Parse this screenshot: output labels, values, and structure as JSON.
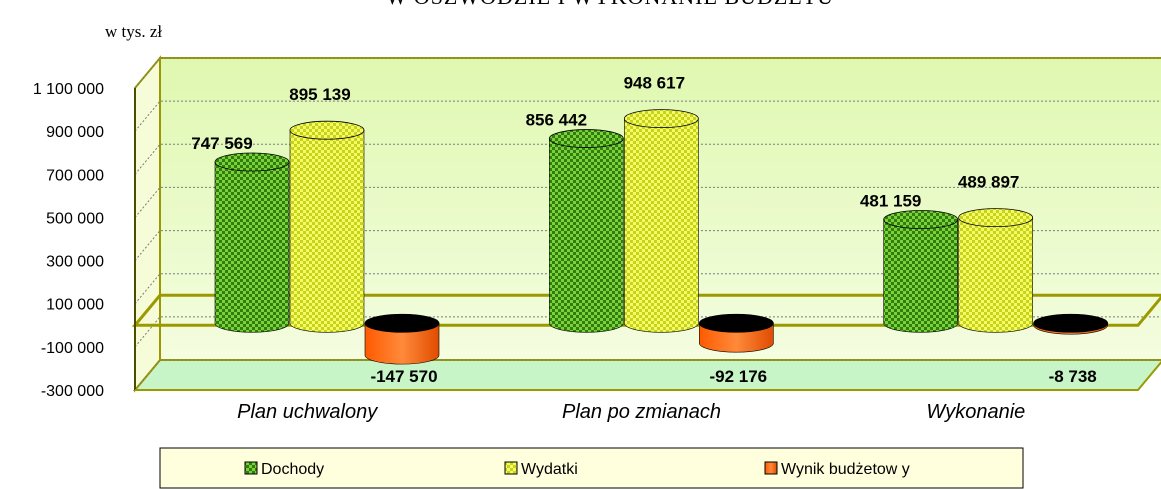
{
  "chart_data": {
    "type": "bar",
    "title": "W OSZWODZIE I WYKONANIE BUDŻETU",
    "unit_label": "w tys. zł",
    "categories": [
      "Plan uchwalony",
      "Plan po zmianach",
      "Wykonanie"
    ],
    "series": [
      {
        "name": "Dochody",
        "values": [
          747569,
          856442,
          481159
        ],
        "color": "#4a9a1c"
      },
      {
        "name": "Wydatki",
        "values": [
          895139,
          948617,
          489897
        ],
        "color": "#e8f53a"
      },
      {
        "name": "Wynik budżetowy",
        "values": [
          -147570,
          -92176,
          -8738
        ],
        "color": "#ff6a10"
      }
    ],
    "value_labels": [
      [
        "747 569",
        "856 442",
        "481 159"
      ],
      [
        "895 139",
        "948 617",
        "489 897"
      ],
      [
        "-147 570",
        "-92 176",
        "-8 738"
      ]
    ],
    "legend_labels": [
      "Dochody",
      "Wydatki",
      "Wynik budżetow y"
    ],
    "y_ticks": [
      -300000,
      -100000,
      100000,
      300000,
      500000,
      700000,
      900000,
      1100000
    ],
    "y_tick_labels": [
      "-300 000",
      "-100 000",
      "100 000",
      "300 000",
      "500 000",
      "700 000",
      "900 000",
      "1 100 000"
    ],
    "ylim": [
      -300000,
      1100000
    ],
    "grid": true,
    "legend_position": "bottom",
    "style": "3d-cylinder",
    "colors": {
      "wall": "#e8fbc8",
      "floor": "#c8f5c8",
      "wall_edge": "#9a9a00",
      "legend_bg": "#ffffdd"
    }
  }
}
